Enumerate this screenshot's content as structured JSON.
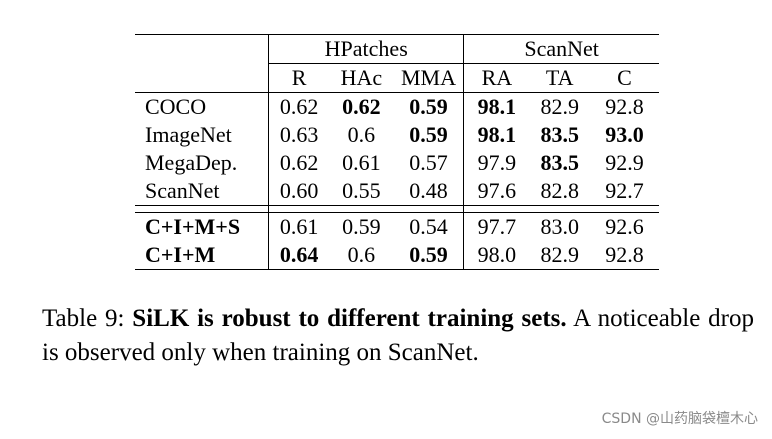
{
  "table": {
    "groups": [
      {
        "label": "HPatches"
      },
      {
        "label": "ScanNet"
      }
    ],
    "columns": [
      "R",
      "HAc",
      "MMA",
      "RA",
      "TA",
      "C"
    ],
    "rows": [
      {
        "name": "COCO",
        "name_bold": false,
        "cells": [
          {
            "v": "0.62",
            "b": false
          },
          {
            "v": "0.62",
            "b": true
          },
          {
            "v": "0.59",
            "b": true
          },
          {
            "v": "98.1",
            "b": true
          },
          {
            "v": "82.9",
            "b": false
          },
          {
            "v": "92.8",
            "b": false
          }
        ]
      },
      {
        "name": "ImageNet",
        "name_bold": false,
        "cells": [
          {
            "v": "0.63",
            "b": false
          },
          {
            "v": "0.6",
            "b": false
          },
          {
            "v": "0.59",
            "b": true
          },
          {
            "v": "98.1",
            "b": true
          },
          {
            "v": "83.5",
            "b": true
          },
          {
            "v": "93.0",
            "b": true
          }
        ]
      },
      {
        "name": "MegaDep.",
        "name_bold": false,
        "cells": [
          {
            "v": "0.62",
            "b": false
          },
          {
            "v": "0.61",
            "b": false
          },
          {
            "v": "0.57",
            "b": false
          },
          {
            "v": "97.9",
            "b": false
          },
          {
            "v": "83.5",
            "b": true
          },
          {
            "v": "92.9",
            "b": false
          }
        ]
      },
      {
        "name": "ScanNet",
        "name_bold": false,
        "cells": [
          {
            "v": "0.60",
            "b": false
          },
          {
            "v": "0.55",
            "b": false
          },
          {
            "v": "0.48",
            "b": false
          },
          {
            "v": "97.6",
            "b": false
          },
          {
            "v": "82.8",
            "b": false
          },
          {
            "v": "92.7",
            "b": false
          }
        ]
      },
      {
        "name": "C+I+M+S",
        "name_bold": true,
        "cells": [
          {
            "v": "0.61",
            "b": false
          },
          {
            "v": "0.59",
            "b": false
          },
          {
            "v": "0.54",
            "b": false
          },
          {
            "v": "97.7",
            "b": false
          },
          {
            "v": "83.0",
            "b": false
          },
          {
            "v": "92.6",
            "b": false
          }
        ]
      },
      {
        "name": "C+I+M",
        "name_bold": true,
        "cells": [
          {
            "v": "0.64",
            "b": true
          },
          {
            "v": "0.6",
            "b": false
          },
          {
            "v": "0.59",
            "b": true
          },
          {
            "v": "98.0",
            "b": false
          },
          {
            "v": "82.9",
            "b": false
          },
          {
            "v": "92.8",
            "b": false
          }
        ]
      }
    ]
  },
  "caption": {
    "prefix": "Table 9: ",
    "bold": "SiLK is robust to different training sets.",
    "rest": " A noticeable drop is observed only when training on ScanNet."
  },
  "watermark": "CSDN @山药脑袋檀木心"
}
